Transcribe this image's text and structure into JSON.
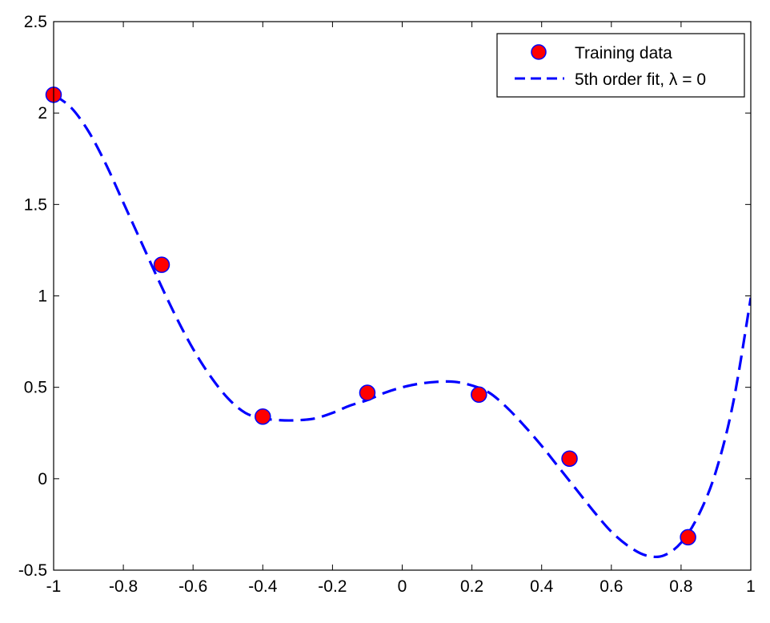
{
  "chart_data": {
    "type": "line",
    "title": "",
    "xlabel": "",
    "ylabel": "",
    "xlim": [
      -1,
      1
    ],
    "ylim": [
      -0.5,
      2.5
    ],
    "grid": false,
    "legend_position": "top-right",
    "xticks": [
      -1,
      -0.8,
      -0.6,
      -0.4,
      -0.2,
      0,
      0.2,
      0.4,
      0.6,
      0.8,
      1
    ],
    "xtick_labels": [
      "-1",
      "-0.8",
      "-0.6",
      "-0.4",
      "-0.2",
      "0",
      "0.2",
      "0.4",
      "0.6",
      "0.8",
      "1"
    ],
    "yticks": [
      -0.5,
      0,
      0.5,
      1,
      1.5,
      2,
      2.5
    ],
    "ytick_labels": [
      "-0.5",
      "0",
      "0.5",
      "1",
      "1.5",
      "2",
      "2.5"
    ],
    "series": [
      {
        "name": "Training data",
        "style": "markers",
        "marker_color": "#ff0000",
        "edge_color": "#0000ff",
        "x": [
          -1.0,
          -0.69,
          -0.4,
          -0.1,
          0.22,
          0.48,
          0.82
        ],
        "y": [
          2.1,
          1.17,
          0.34,
          0.47,
          0.46,
          0.11,
          -0.32
        ]
      },
      {
        "name": "5th order fit, λ = 0",
        "style": "dashed-line",
        "line_color": "#0000ff",
        "x": [
          -1.0,
          -0.95,
          -0.9,
          -0.85,
          -0.8,
          -0.75,
          -0.7,
          -0.65,
          -0.6,
          -0.55,
          -0.5,
          -0.45,
          -0.4,
          -0.35,
          -0.3,
          -0.25,
          -0.2,
          -0.15,
          -0.1,
          -0.05,
          0.0,
          0.05,
          0.1,
          0.15,
          0.2,
          0.25,
          0.3,
          0.35,
          0.4,
          0.45,
          0.5,
          0.55,
          0.6,
          0.65,
          0.7,
          0.75,
          0.8,
          0.85,
          0.9,
          0.95,
          1.0
        ],
        "y": [
          2.1,
          2.03,
          1.9,
          1.72,
          1.51,
          1.3,
          1.09,
          0.89,
          0.71,
          0.56,
          0.44,
          0.36,
          0.33,
          0.32,
          0.32,
          0.33,
          0.36,
          0.4,
          0.43,
          0.47,
          0.5,
          0.52,
          0.53,
          0.53,
          0.51,
          0.47,
          0.39,
          0.29,
          0.18,
          0.06,
          -0.06,
          -0.18,
          -0.29,
          -0.37,
          -0.42,
          -0.42,
          -0.35,
          -0.2,
          0.04,
          0.42,
          0.99
        ]
      }
    ]
  }
}
